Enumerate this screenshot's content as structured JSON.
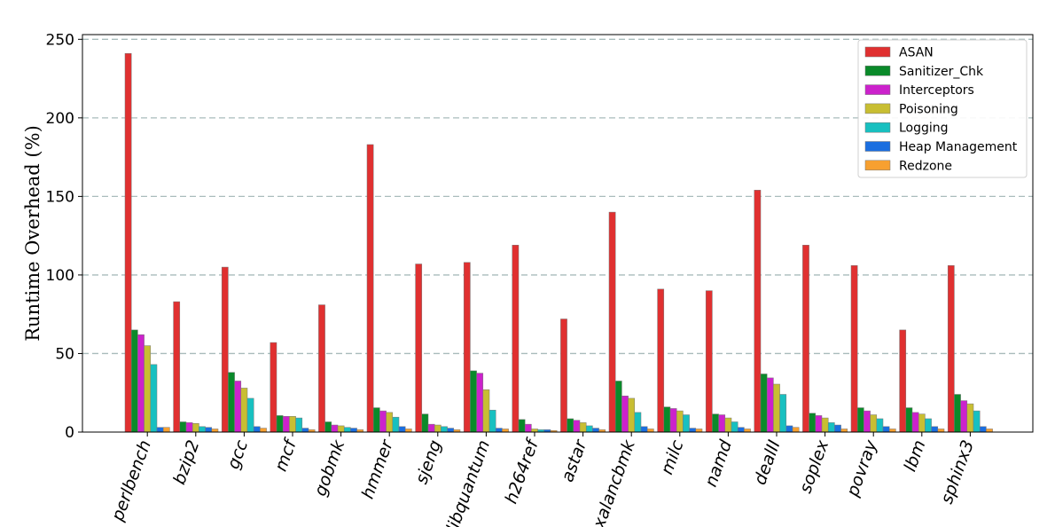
{
  "chart_data": {
    "type": "bar",
    "title": "",
    "xlabel": "",
    "ylabel": "Runtime Overhead (%)",
    "ylim": [
      0,
      253
    ],
    "yticks": [
      0,
      50,
      100,
      150,
      200,
      250
    ],
    "grid": "horizontal dashed",
    "legend_position": "top-right",
    "categories": [
      "perlbench",
      "bzip2",
      "gcc",
      "mcf",
      "gobmk",
      "hmmer",
      "sjeng",
      "libquantum",
      "h264ref",
      "astar",
      "xalancbmk",
      "milc",
      "namd",
      "dealII",
      "soplex",
      "povray",
      "lbm",
      "sphinx3"
    ],
    "series": [
      {
        "name": "ASAN",
        "color": "#e03030",
        "values": [
          241,
          83,
          105,
          57,
          81,
          183,
          107,
          108,
          119,
          72,
          140,
          91,
          90,
          154,
          119,
          106,
          65,
          106
        ]
      },
      {
        "name": "Sanitizer_Chk",
        "color": "#0a8a2a",
        "values": [
          65,
          6.5,
          38,
          10.5,
          6.5,
          15.5,
          11.5,
          39,
          8,
          8.5,
          32.5,
          16,
          11.5,
          37,
          12,
          15.5,
          15.5,
          24
        ]
      },
      {
        "name": "Interceptors",
        "color": "#cc22cc",
        "values": [
          62,
          6,
          32.5,
          10,
          4.5,
          13.5,
          5,
          37.5,
          5,
          7.5,
          23,
          15,
          11,
          34.5,
          10.5,
          13.5,
          12.5,
          20
        ]
      },
      {
        "name": "Poisoning",
        "color": "#c8be32",
        "values": [
          55,
          5.5,
          28,
          10,
          4,
          12.5,
          4.5,
          27,
          2,
          6,
          21.5,
          13.5,
          9,
          30.5,
          9,
          11,
          11.5,
          18
        ]
      },
      {
        "name": "Logging",
        "color": "#18c0c0",
        "values": [
          43,
          3.5,
          21.5,
          9,
          3,
          9.5,
          3.5,
          14,
          1.5,
          4,
          12.5,
          11,
          6.5,
          24,
          6,
          8.5,
          8.5,
          13.5
        ]
      },
      {
        "name": "Heap Management",
        "color": "#1a6ee0",
        "values": [
          3,
          3,
          3.5,
          2.5,
          2.5,
          3.5,
          2.5,
          2.5,
          1.5,
          2.5,
          3.5,
          2.5,
          3,
          4,
          4.5,
          3.5,
          3.5,
          3.5
        ]
      },
      {
        "name": "Redzone",
        "color": "#f7a030",
        "values": [
          3,
          2,
          2.5,
          1.5,
          1.5,
          2,
          1.5,
          2,
          1,
          1.5,
          2,
          2,
          2,
          3,
          2,
          2,
          2,
          2
        ]
      }
    ]
  }
}
